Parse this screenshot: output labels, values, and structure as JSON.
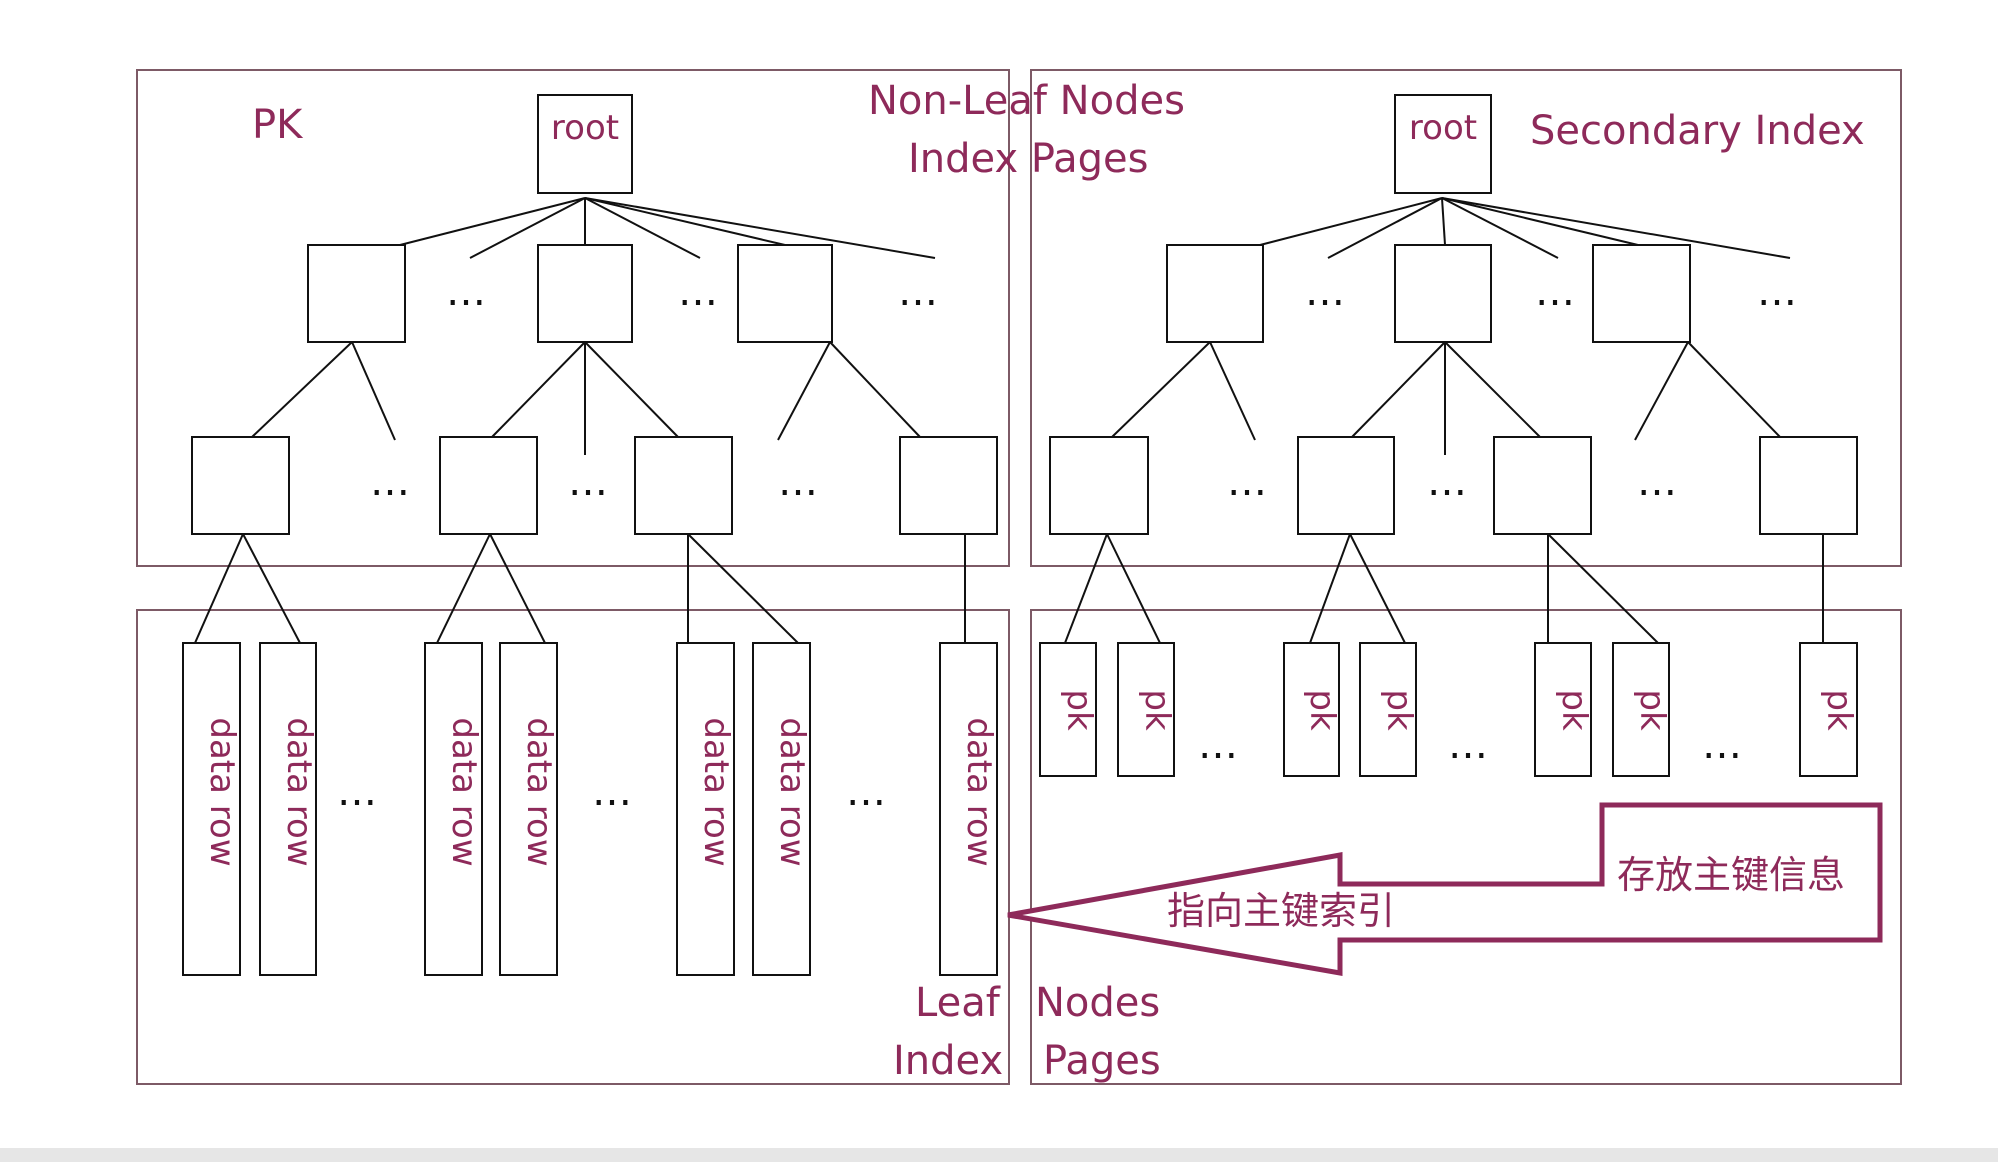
{
  "colors": {
    "accent": "#8e2a5a",
    "frame": "#7d5a66",
    "ink": "#111111",
    "bottom_bar": "#e6e6e6"
  },
  "labels": {
    "pk": "PK",
    "secondary_index": "Secondary Index",
    "non_leaf_line1": "Non-Leaf Nodes",
    "non_leaf_line2": "Index Pages",
    "leaf_word1": "Leaf",
    "leaf_word2": "Nodes",
    "leaf_word3": "Index",
    "leaf_word4": "Pages",
    "root": "root",
    "ellipsis": "…",
    "data_row": "data row",
    "pk_small": "pk",
    "pointer_arrow": "指向主键索引",
    "stores_pk": "存放主键信息"
  }
}
